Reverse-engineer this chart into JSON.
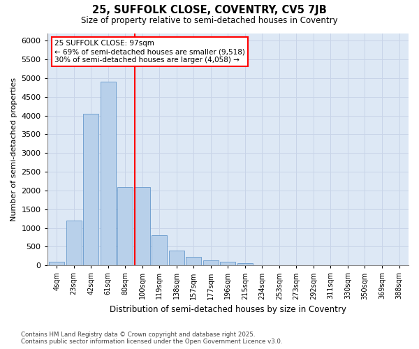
{
  "title1": "25, SUFFOLK CLOSE, COVENTRY, CV5 7JB",
  "title2": "Size of property relative to semi-detached houses in Coventry",
  "xlabel": "Distribution of semi-detached houses by size in Coventry",
  "ylabel": "Number of semi-detached properties",
  "categories": [
    "4sqm",
    "23sqm",
    "42sqm",
    "61sqm",
    "80sqm",
    "100sqm",
    "119sqm",
    "138sqm",
    "157sqm",
    "177sqm",
    "196sqm",
    "215sqm",
    "234sqm",
    "253sqm",
    "273sqm",
    "292sqm",
    "311sqm",
    "330sqm",
    "350sqm",
    "369sqm",
    "388sqm"
  ],
  "values": [
    100,
    1200,
    4050,
    4900,
    2100,
    2100,
    800,
    400,
    220,
    130,
    100,
    60,
    0,
    0,
    0,
    0,
    0,
    0,
    0,
    0,
    0
  ],
  "bar_color": "#b8d0ea",
  "bar_edge_color": "#6699cc",
  "vline_label": "25 SUFFOLK CLOSE: 97sqm",
  "annotation_line1": "← 69% of semi-detached houses are smaller (9,518)",
  "annotation_line2": "30% of semi-detached houses are larger (4,058) →",
  "annotation_box_color": "white",
  "annotation_box_edge": "red",
  "vline_color": "red",
  "ylim": [
    0,
    6200
  ],
  "yticks": [
    0,
    500,
    1000,
    1500,
    2000,
    2500,
    3000,
    3500,
    4000,
    4500,
    5000,
    5500,
    6000
  ],
  "grid_color": "#c8d4e8",
  "bg_color": "#dde8f5",
  "footer1": "Contains HM Land Registry data © Crown copyright and database right 2025.",
  "footer2": "Contains public sector information licensed under the Open Government Licence v3.0."
}
